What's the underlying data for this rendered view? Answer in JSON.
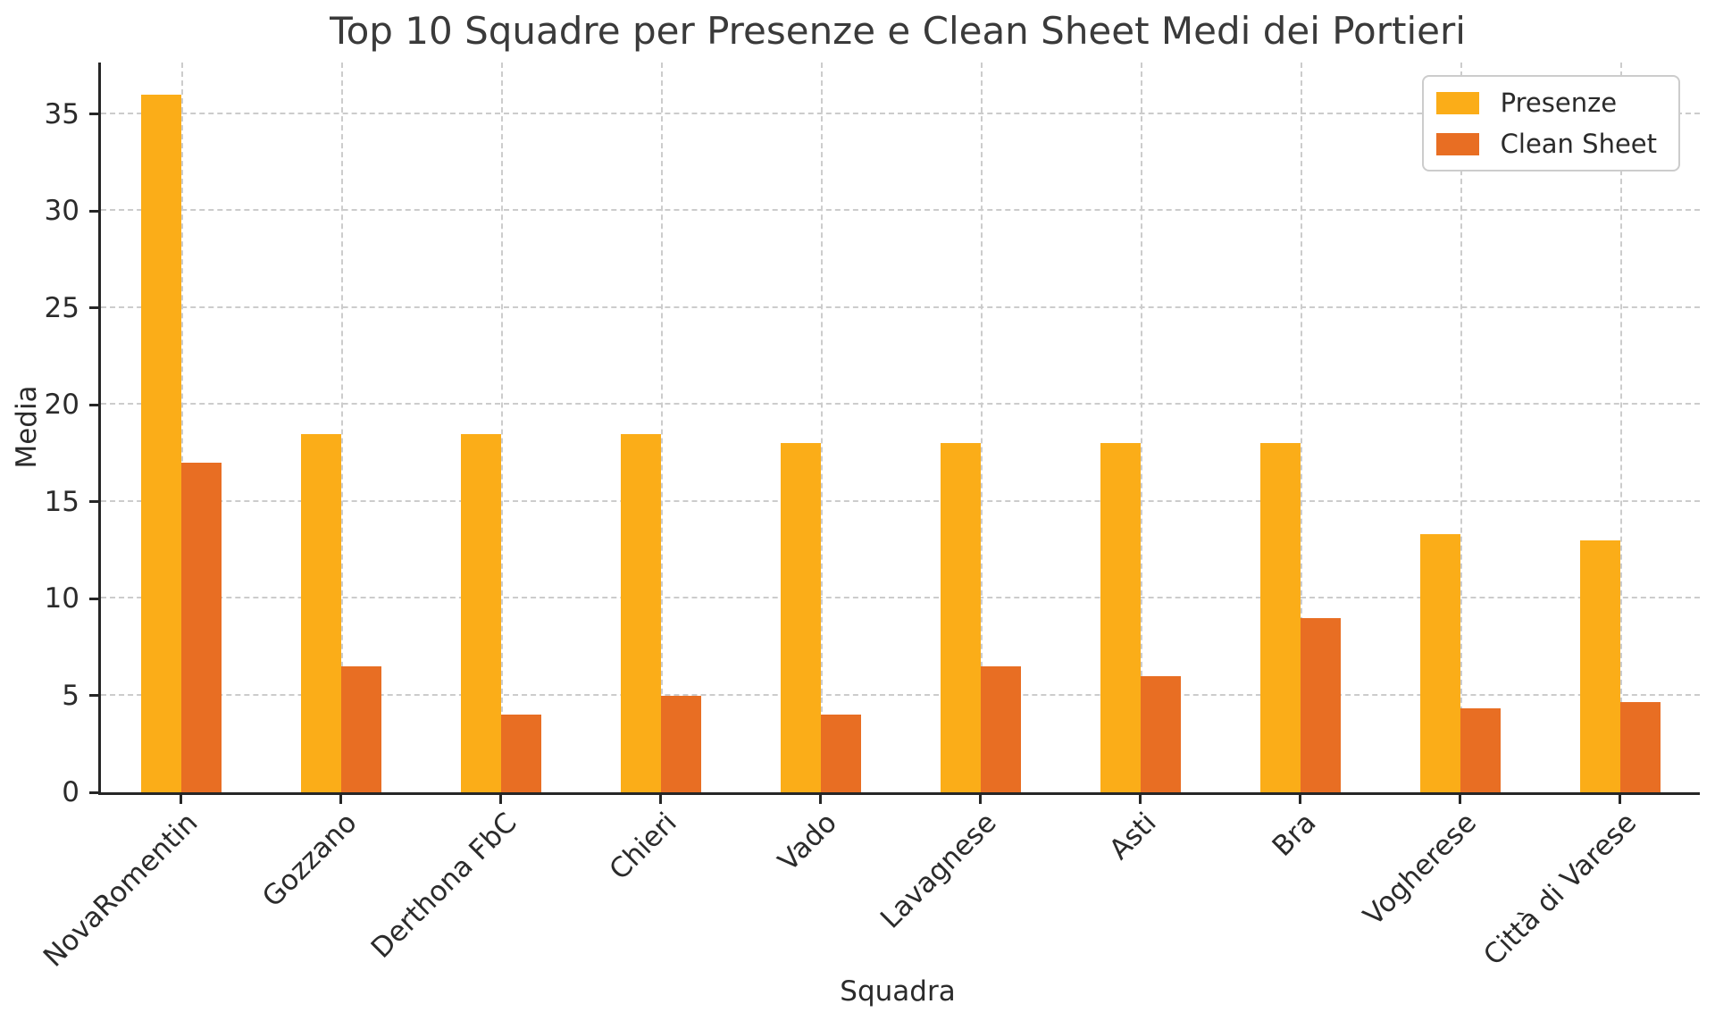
{
  "chart_data": {
    "type": "bar",
    "title": "Top 10 Squadre per Presenze e Clean Sheet Medi dei Portieri",
    "xlabel": "Squadra",
    "ylabel": "Media",
    "categories": [
      "NovaRomentin",
      "Gozzano",
      "Derthona FbC",
      "Chieri",
      "Vado",
      "Lavagnese",
      "Asti",
      "Bra",
      "Vogherese",
      "Città di Varese"
    ],
    "series": [
      {
        "name": "Presenze",
        "color": "#FBAD18",
        "values": [
          36.0,
          18.5,
          18.5,
          18.5,
          18.0,
          18.0,
          18.0,
          18.0,
          13.33,
          13.0
        ]
      },
      {
        "name": "Clean Sheet",
        "color": "#E86E23",
        "values": [
          17.0,
          6.5,
          4.0,
          5.0,
          4.0,
          6.5,
          6.0,
          9.0,
          4.33,
          4.67
        ]
      }
    ],
    "ylim": [
      0,
      37.65
    ],
    "yticks": [
      0,
      5,
      10,
      15,
      20,
      25,
      30,
      35
    ],
    "grid": "both-dashed",
    "legend_position": "upper-right",
    "x_tick_rotation": 45
  }
}
